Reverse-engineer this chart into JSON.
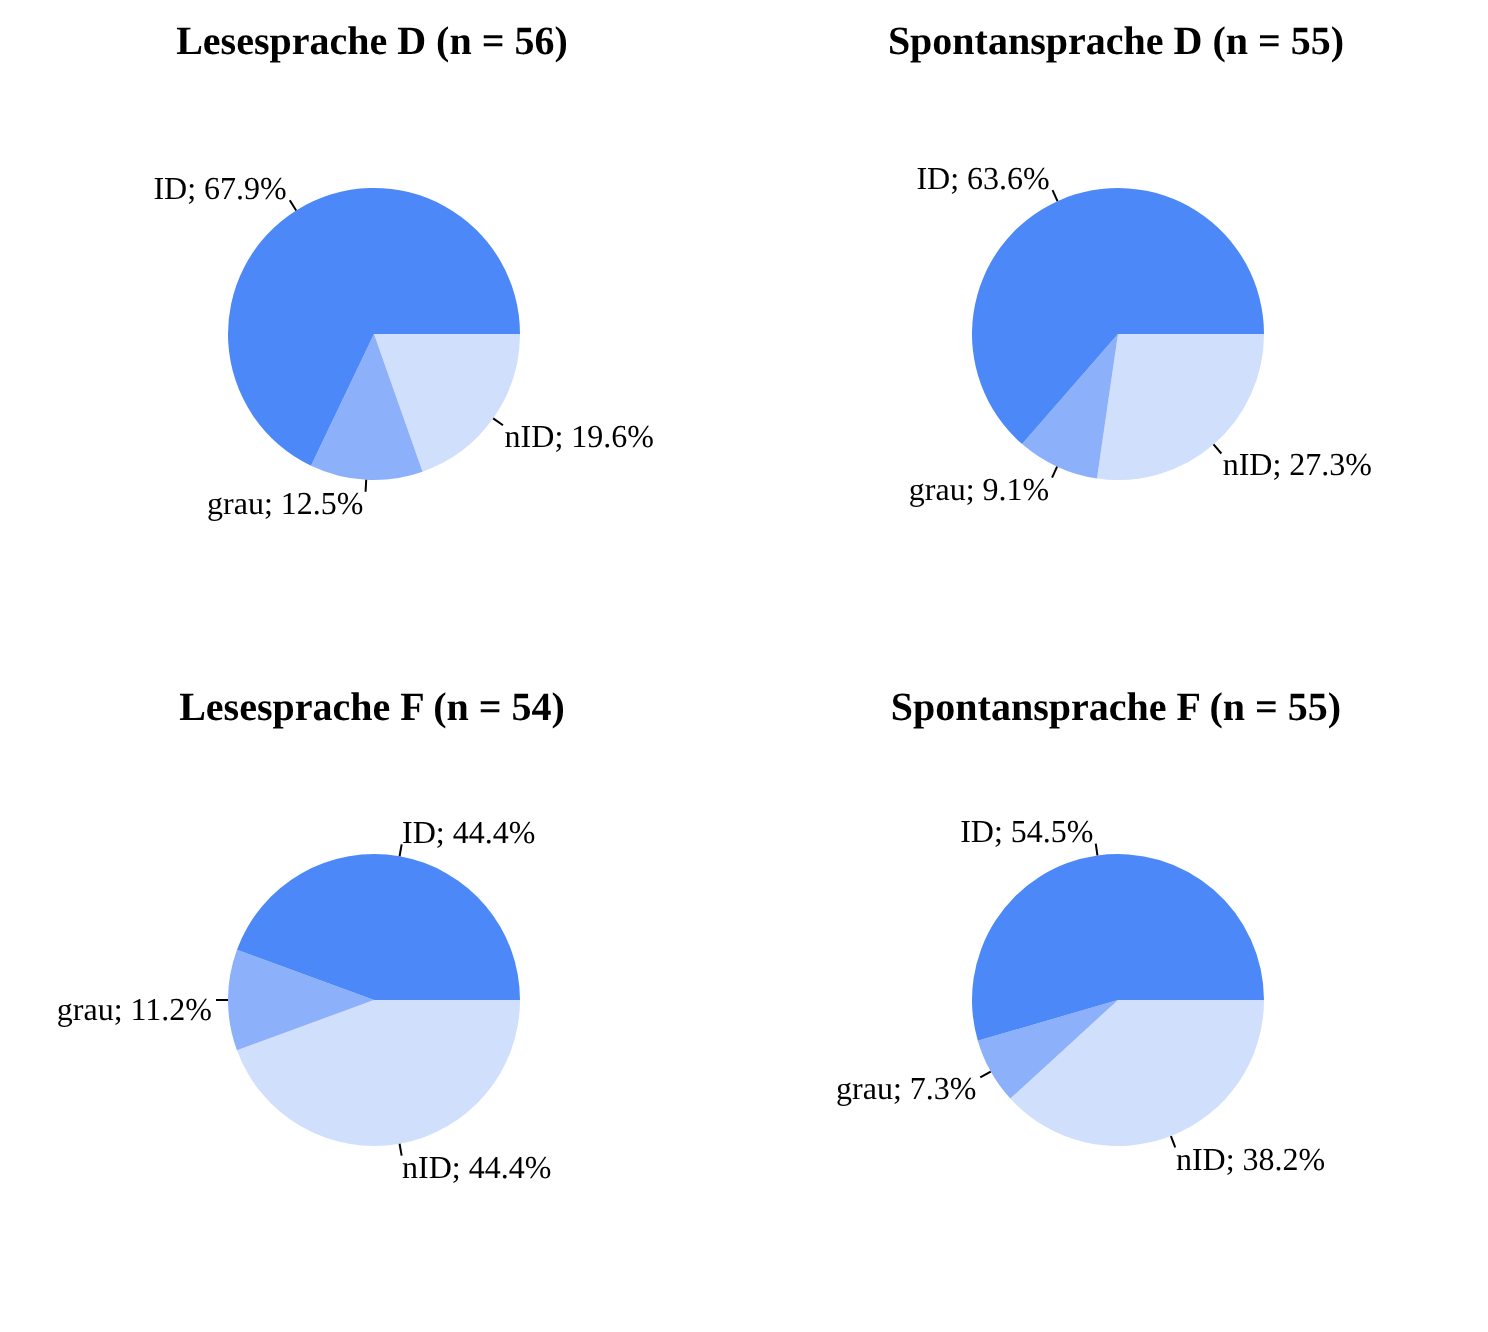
{
  "chart_data": [
    {
      "type": "pie",
      "title": "Lesesprache D (n = 56)",
      "categories": [
        "nID",
        "grau",
        "ID"
      ],
      "values": [
        19.6,
        12.5,
        67.9
      ],
      "value_labels": [
        "19.6%",
        "12.5%",
        "67.9%"
      ],
      "colors": [
        "#d0dffc",
        "#8db0fa",
        "#4d88f8"
      ],
      "legend": false
    },
    {
      "type": "pie",
      "title": "Spontansprache D (n = 55)",
      "categories": [
        "nID",
        "grau",
        "ID"
      ],
      "values": [
        27.3,
        9.1,
        63.6
      ],
      "value_labels": [
        "27.3%",
        "9.1%",
        "63.6%"
      ],
      "colors": [
        "#d0dffc",
        "#8db0fa",
        "#4d88f8"
      ],
      "legend": false
    },
    {
      "type": "pie",
      "title": "Lesesprache F (n = 54)",
      "categories": [
        "nID",
        "grau",
        "ID"
      ],
      "values": [
        44.4,
        11.2,
        44.4
      ],
      "value_labels": [
        "44.4%",
        "11.2%",
        "44.4%"
      ],
      "colors": [
        "#d0dffc",
        "#8db0fa",
        "#4d88f8"
      ],
      "legend": false
    },
    {
      "type": "pie",
      "title": "Spontansprache F (n = 55)",
      "categories": [
        "nID",
        "grau",
        "ID"
      ],
      "values": [
        38.2,
        7.3,
        54.5
      ],
      "value_labels": [
        "38.2%",
        "7.3%",
        "54.5%"
      ],
      "colors": [
        "#d0dffc",
        "#8db0fa",
        "#4d88f8"
      ],
      "legend": false
    }
  ]
}
